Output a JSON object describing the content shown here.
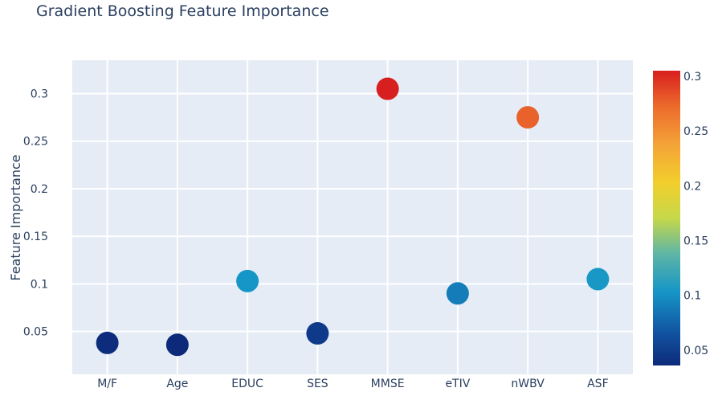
{
  "chart_data": {
    "type": "scatter",
    "title": "Gradient Boosting Feature Importance",
    "xlabel": "",
    "ylabel": "Feature Importance",
    "categories": [
      "M/F",
      "Age",
      "EDUC",
      "SES",
      "MMSE",
      "eTIV",
      "nWBV",
      "ASF"
    ],
    "values": [
      0.038,
      0.036,
      0.103,
      0.048,
      0.305,
      0.09,
      0.275,
      0.105
    ],
    "ylim": [
      0.005,
      0.335
    ],
    "y_ticks": [
      0.05,
      0.1,
      0.15,
      0.2,
      0.25,
      0.3
    ],
    "y_tick_labels": [
      "0.05",
      "0.1",
      "0.15",
      "0.2",
      "0.25",
      "0.3"
    ],
    "grid": true,
    "colorbar": {
      "range": [
        0.036,
        0.305
      ],
      "ticks": [
        0.05,
        0.1,
        0.15,
        0.2,
        0.25,
        0.3
      ],
      "tick_labels": [
        "0.05",
        "0.1",
        "0.15",
        "0.2",
        "0.25",
        "0.3"
      ],
      "colorscale": [
        "#0d2a7a",
        "#1157a4",
        "#1696c7",
        "#5fb6a5",
        "#c6d84a",
        "#f2cf2c",
        "#f4a338",
        "#ec6a2c",
        "#d81f1f"
      ]
    },
    "colors": {
      "plot_bg": "#e5ecf6",
      "grid": "#ffffff",
      "text": "#2a3f5f"
    }
  }
}
